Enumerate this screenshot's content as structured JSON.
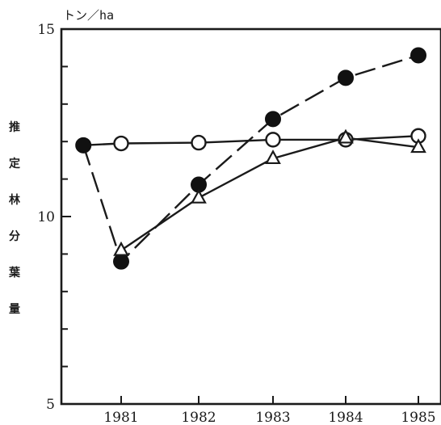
{
  "chart_data": {
    "type": "line",
    "title": "",
    "unit_label": "トン／ha",
    "ylabel": "推定林分葉量",
    "xlabel": "",
    "ylim": [
      5,
      15
    ],
    "yticks": [
      5,
      10,
      15
    ],
    "xticks": [
      1981,
      1982,
      1983,
      1984,
      1985
    ],
    "grid": false,
    "series": [
      {
        "marker": "open-circle",
        "line_style": "solid",
        "points": [
          {
            "x": 1980.6,
            "y": 11.9
          },
          {
            "x": 1981.0,
            "y": 11.95
          },
          {
            "x": 1982.0,
            "y": 11.97
          },
          {
            "x": 1983.0,
            "y": 12.05
          },
          {
            "x": 1984.0,
            "y": 12.05
          },
          {
            "x": 1985.0,
            "y": 12.15
          }
        ]
      },
      {
        "marker": "filled-circle",
        "line_style": "dashed",
        "points": [
          {
            "x": 1980.6,
            "y": 11.9
          },
          {
            "x": 1981.0,
            "y": 8.8
          },
          {
            "x": 1982.0,
            "y": 10.85
          },
          {
            "x": 1983.0,
            "y": 12.6
          },
          {
            "x": 1984.0,
            "y": 13.7
          },
          {
            "x": 1985.0,
            "y": 14.3
          }
        ]
      },
      {
        "marker": "open-triangle",
        "line_style": "solid",
        "points": [
          {
            "x": 1981.0,
            "y": 9.1
          },
          {
            "x": 1982.0,
            "y": 10.5
          },
          {
            "x": 1983.0,
            "y": 11.55
          },
          {
            "x": 1984.0,
            "y": 12.1
          },
          {
            "x": 1985.0,
            "y": 11.85
          }
        ]
      }
    ]
  }
}
